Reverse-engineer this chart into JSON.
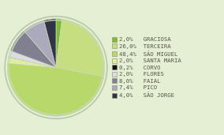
{
  "labels": [
    "GRACIOSA",
    "TERCEIRA",
    "SÃO MIGUEL",
    "SANTA MARIA",
    "CORVO",
    "FLORES",
    "FAIAL",
    "PICO",
    "SÃO JORGE"
  ],
  "values": [
    2.0,
    26.0,
    48.4,
    2.0,
    0.2,
    2.0,
    8.0,
    7.4,
    4.0
  ],
  "colors": [
    "#7bbf30",
    "#c5de80",
    "#b8d96a",
    "#ddeea0",
    "#111111",
    "#dcdce8",
    "#808090",
    "#aaaabc",
    "#333348"
  ],
  "pct_labels": [
    "2,0%",
    "26,0%",
    "48,4%",
    "2,0%",
    "0,2%",
    "2,0%",
    "8,0%",
    "7,4%",
    "4,0%"
  ],
  "background_color": "#e4efd4",
  "text_color": "#505840",
  "legend_fontsize": 5.2,
  "startangle": 90
}
